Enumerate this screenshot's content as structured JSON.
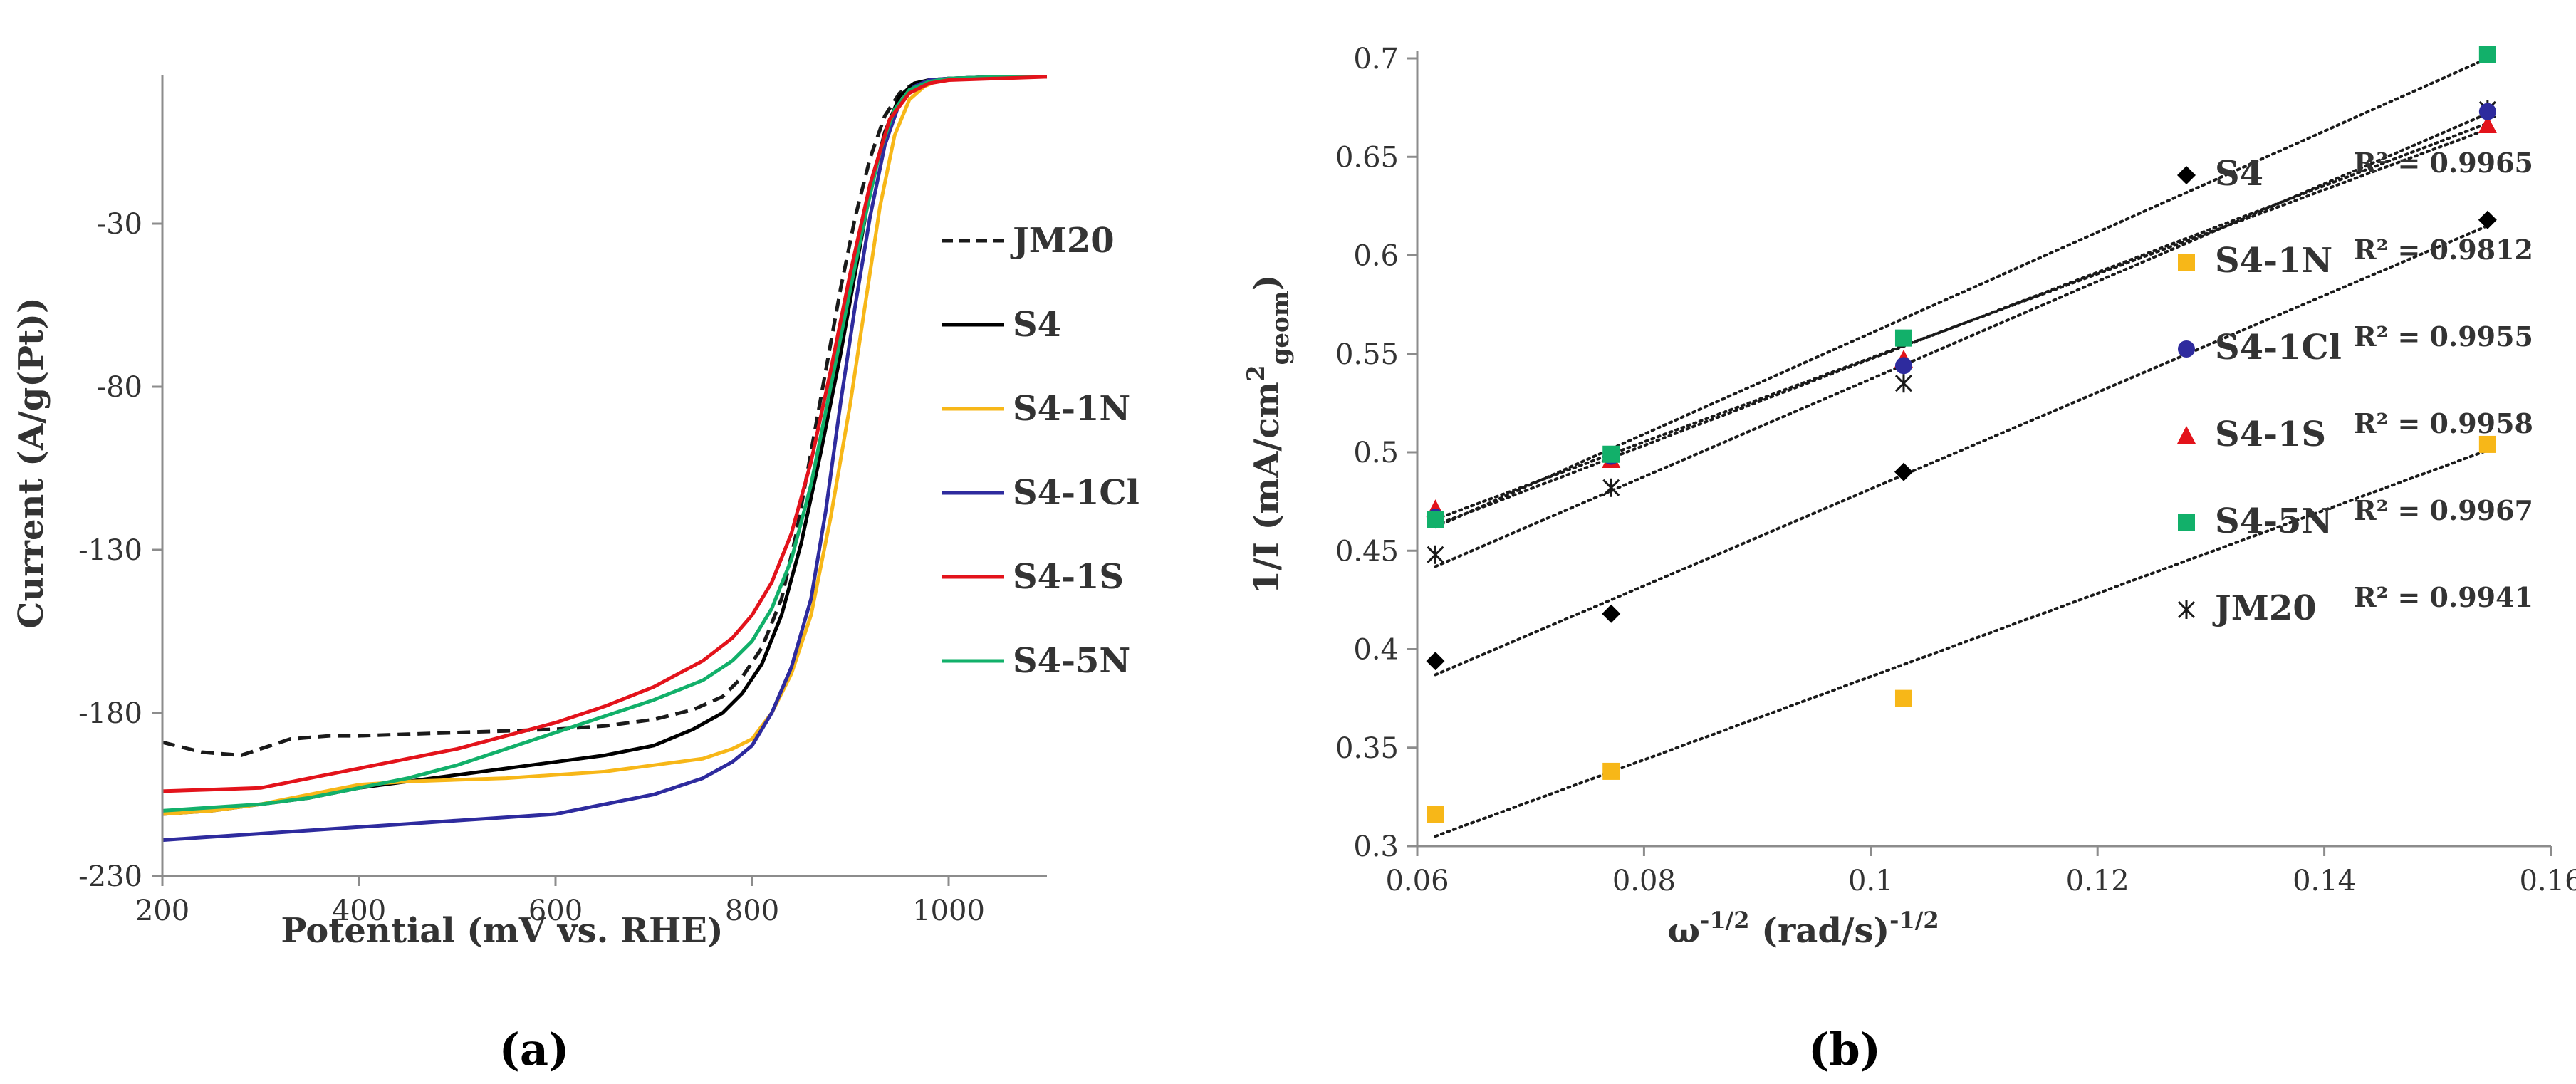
{
  "colors": {
    "JM20": "#1a1a1a",
    "S4": "#000000",
    "S4-1N": "#f7b718",
    "S4-1Cl": "#2e2b9e",
    "S4-1S": "#e3131b",
    "S4-5N": "#12b06a",
    "axis": "#8c8c8c"
  },
  "chart_data": [
    {
      "type": "line",
      "panel_label": "(a)",
      "title": "",
      "xlabel": "Potential (mV vs. RHE)",
      "ylabel": "Current (A/g(Pt))",
      "xlim": [
        200,
        1100
      ],
      "ylim": [
        -230,
        20
      ],
      "xticks": [
        "200",
        "400",
        "600",
        "800",
        "1000"
      ],
      "yticks": [
        "-30",
        "-80",
        "-130",
        "-180",
        "-230"
      ],
      "legend_position": "right",
      "series": [
        {
          "name": "JM20",
          "dash": "dashed",
          "x": [
            200,
            240,
            280,
            300,
            330,
            370,
            400,
            450,
            500,
            550,
            600,
            650,
            700,
            740,
            770,
            790,
            810,
            830,
            845,
            860,
            875,
            890,
            905,
            920,
            935,
            950,
            965,
            980,
            1000,
            1050,
            1100
          ],
          "y": [
            -189,
            -192,
            -193,
            -191,
            -188,
            -187,
            -187,
            -186.5,
            -186,
            -185.5,
            -185,
            -184,
            -182,
            -179,
            -175,
            -169,
            -160,
            -145,
            -125,
            -100,
            -75,
            -50,
            -28,
            -10,
            3,
            10,
            13,
            14,
            14.5,
            15,
            15
          ]
        },
        {
          "name": "S4",
          "x": [
            200,
            250,
            300,
            350,
            400,
            450,
            500,
            550,
            600,
            650,
            700,
            740,
            770,
            790,
            810,
            830,
            850,
            870,
            890,
            905,
            920,
            935,
            950,
            965,
            980,
            1000,
            1050,
            1100
          ],
          "y": [
            -211,
            -210,
            -208,
            -206,
            -203,
            -201,
            -199,
            -197,
            -195,
            -193,
            -190,
            -185,
            -180,
            -174,
            -165,
            -150,
            -128,
            -100,
            -70,
            -45,
            -20,
            -2,
            9,
            13,
            14,
            14.5,
            15,
            15
          ]
        },
        {
          "name": "S4-1N",
          "x": [
            200,
            250,
            300,
            350,
            400,
            450,
            500,
            550,
            600,
            650,
            700,
            750,
            780,
            800,
            820,
            840,
            860,
            880,
            900,
            915,
            930,
            945,
            960,
            975,
            990,
            1010,
            1050,
            1100
          ],
          "y": [
            -211,
            -210,
            -208,
            -205,
            -202,
            -201,
            -200.5,
            -200,
            -199,
            -198,
            -196,
            -194,
            -191,
            -188,
            -180,
            -168,
            -150,
            -120,
            -85,
            -55,
            -25,
            -3,
            8,
            12,
            14,
            14.5,
            15,
            15
          ]
        },
        {
          "name": "S4-1Cl",
          "x": [
            200,
            250,
            300,
            350,
            400,
            450,
            500,
            550,
            600,
            650,
            700,
            750,
            780,
            800,
            820,
            840,
            860,
            875,
            890,
            905,
            920,
            935,
            950,
            965,
            980,
            1000,
            1050,
            1100
          ],
          "y": [
            -219,
            -218,
            -217,
            -216,
            -215,
            -214,
            -213,
            -212,
            -211,
            -208,
            -205,
            -200,
            -195,
            -190,
            -180,
            -166,
            -145,
            -118,
            -85,
            -55,
            -28,
            -6,
            7,
            12,
            14,
            14.5,
            15,
            15
          ]
        },
        {
          "name": "S4-1S",
          "x": [
            200,
            250,
            300,
            350,
            400,
            450,
            500,
            550,
            600,
            650,
            700,
            750,
            780,
            800,
            820,
            840,
            860,
            880,
            900,
            920,
            940,
            960,
            980,
            1000,
            1050,
            1100
          ],
          "y": [
            -204,
            -203.5,
            -203,
            -200,
            -197,
            -194,
            -191,
            -187,
            -183,
            -178,
            -172,
            -164,
            -157,
            -150,
            -140,
            -125,
            -103,
            -75,
            -45,
            -18,
            2,
            10,
            13,
            14,
            14.5,
            15
          ]
        },
        {
          "name": "S4-5N",
          "x": [
            200,
            250,
            300,
            350,
            400,
            450,
            500,
            550,
            600,
            650,
            700,
            750,
            780,
            800,
            820,
            840,
            860,
            880,
            900,
            915,
            930,
            945,
            960,
            980,
            1000,
            1050,
            1100
          ],
          "y": [
            -210,
            -209,
            -208,
            -206,
            -203,
            -200,
            -196,
            -191,
            -186,
            -181,
            -176,
            -170,
            -164,
            -158,
            -148,
            -133,
            -110,
            -80,
            -50,
            -28,
            -8,
            5,
            11,
            13.5,
            14.5,
            15,
            15
          ]
        }
      ]
    },
    {
      "type": "scatter",
      "panel_label": "(b)",
      "title": "",
      "xlabel_main": "ω",
      "xlabel_sup1": "-1/2",
      "xlabel_mid": " (rad/s)",
      "xlabel_sup2": "-1/2",
      "ylabel_main": "1/I (mA/cm",
      "ylabel_sup": "2",
      "ylabel_sub": "geom",
      "ylabel_end": ")",
      "xlim": [
        0.06,
        0.16
      ],
      "ylim": [
        0.3,
        0.7
      ],
      "xticks": [
        "0.06",
        "0.08",
        "0.1",
        "0.12",
        "0.14",
        "0.16"
      ],
      "yticks": [
        "0.3",
        "0.35",
        "0.4",
        "0.45",
        "0.5",
        "0.55",
        "0.6",
        "0.65",
        "0.7"
      ],
      "x": [
        0.0616,
        0.0771,
        0.1029,
        0.1544
      ],
      "legend_position": "right",
      "series": [
        {
          "name": "S4",
          "marker": "diamond",
          "r2": "R² = 0.9965",
          "y": [
            0.394,
            0.418,
            0.49,
            0.618
          ],
          "fit": [
            0.0616,
            0.387,
            0.1544,
            0.615
          ]
        },
        {
          "name": "S4-1N",
          "marker": "square",
          "r2": "R² = 0.9812",
          "y": [
            0.316,
            0.338,
            0.375,
            0.504
          ],
          "fit": [
            0.0616,
            0.305,
            0.1544,
            0.501
          ]
        },
        {
          "name": "S4-1Cl",
          "marker": "circle",
          "r2": "R² = 0.9955",
          "y": [
            0.467,
            0.498,
            0.544,
            0.673
          ],
          "fit": [
            0.0616,
            0.463,
            0.1544,
            0.667
          ]
        },
        {
          "name": "S4-1S",
          "marker": "triangle",
          "r2": "R² = 0.9958",
          "y": [
            0.471,
            0.496,
            0.547,
            0.666
          ],
          "fit": [
            0.0616,
            0.466,
            0.1544,
            0.664
          ]
        },
        {
          "name": "S4-5N",
          "marker": "square",
          "r2": "R² = 0.9967",
          "y": [
            0.466,
            0.499,
            0.558,
            0.702
          ],
          "fit": [
            0.0616,
            0.462,
            0.1544,
            0.7
          ]
        },
        {
          "name": "JM20",
          "marker": "asterisk",
          "r2": "R² = 0.9941",
          "y": [
            0.448,
            0.482,
            0.535,
            0.674
          ],
          "fit": [
            0.0616,
            0.442,
            0.1544,
            0.672
          ]
        }
      ]
    }
  ]
}
